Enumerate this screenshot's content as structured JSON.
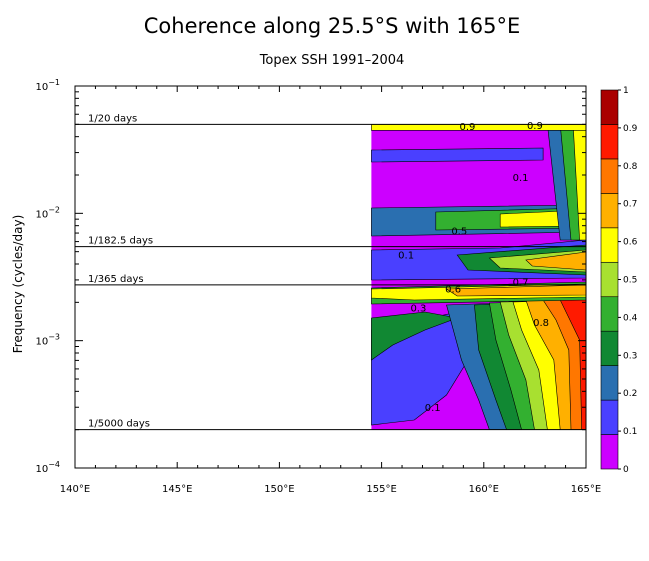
{
  "chart_data": {
    "type": "heatmap",
    "title": "Coherence along 25.5°S with 165°E",
    "subtitle": "Topex SSH 1991–2004",
    "ylabel": "Frequency (cycles/day)",
    "xlabel": "",
    "x_axis": {
      "range": [
        140,
        165
      ],
      "ticks": [
        140,
        145,
        150,
        155,
        160,
        165
      ],
      "tick_labels": [
        "140°E",
        "145°E",
        "150°E",
        "155°E",
        "160°E",
        "165°E"
      ]
    },
    "y_axis": {
      "scale": "log",
      "range": [
        0.0001,
        0.1
      ],
      "ticks": [
        0.0001,
        0.001,
        0.01,
        0.1
      ],
      "tick_labels": [
        {
          "base": "10",
          "exp": "−4"
        },
        {
          "base": "10",
          "exp": "−3"
        },
        {
          "base": "10",
          "exp": "−2"
        },
        {
          "base": "10",
          "exp": "−1"
        }
      ]
    },
    "period_lines": [
      {
        "label": "1/20 days",
        "frequency": 0.05
      },
      {
        "label": "1/182.5 days",
        "frequency": 0.00548
      },
      {
        "label": "1/365 days",
        "frequency": 0.00274
      },
      {
        "label": "1/5000 days",
        "frequency": 0.0002
      }
    ],
    "colorbar": {
      "levels": [
        0,
        0.1,
        0.2,
        0.3,
        0.4,
        0.5,
        0.6,
        0.7,
        0.8,
        0.9,
        1
      ],
      "tick_labels": [
        "0",
        "0.1",
        "0.2",
        "0.3",
        "0.4",
        "0.5",
        "0.6",
        "0.7",
        "0.8",
        "0.9",
        "1"
      ],
      "colors": [
        "#cc00ff",
        "#4a40ff",
        "#2a6fb0",
        "#118833",
        "#33b030",
        "#a8e030",
        "#ffff00",
        "#ffb000",
        "#ff7700",
        "#ff1a00",
        "#aa0000"
      ]
    },
    "data_x_range": [
      154.5,
      165
    ],
    "contour_labels": [
      {
        "text": "0.1",
        "x": 157.5,
        "f": 0.00028
      },
      {
        "text": "0.1",
        "x": 161.8,
        "f": 0.018
      },
      {
        "text": "0.1",
        "x": 156.2,
        "f": 0.0044
      },
      {
        "text": "0.3",
        "x": 156.8,
        "f": 0.0017
      },
      {
        "text": "0.5",
        "x": 158.8,
        "f": 0.0068
      },
      {
        "text": "0.6",
        "x": 158.5,
        "f": 0.0024
      },
      {
        "text": "0.7",
        "x": 161.8,
        "f": 0.0027
      },
      {
        "text": "0.8",
        "x": 162.8,
        "f": 0.0013
      },
      {
        "text": "0.9",
        "x": 159.2,
        "f": 0.045
      },
      {
        "text": "0.9",
        "x": 162.5,
        "f": 0.046
      }
    ]
  }
}
